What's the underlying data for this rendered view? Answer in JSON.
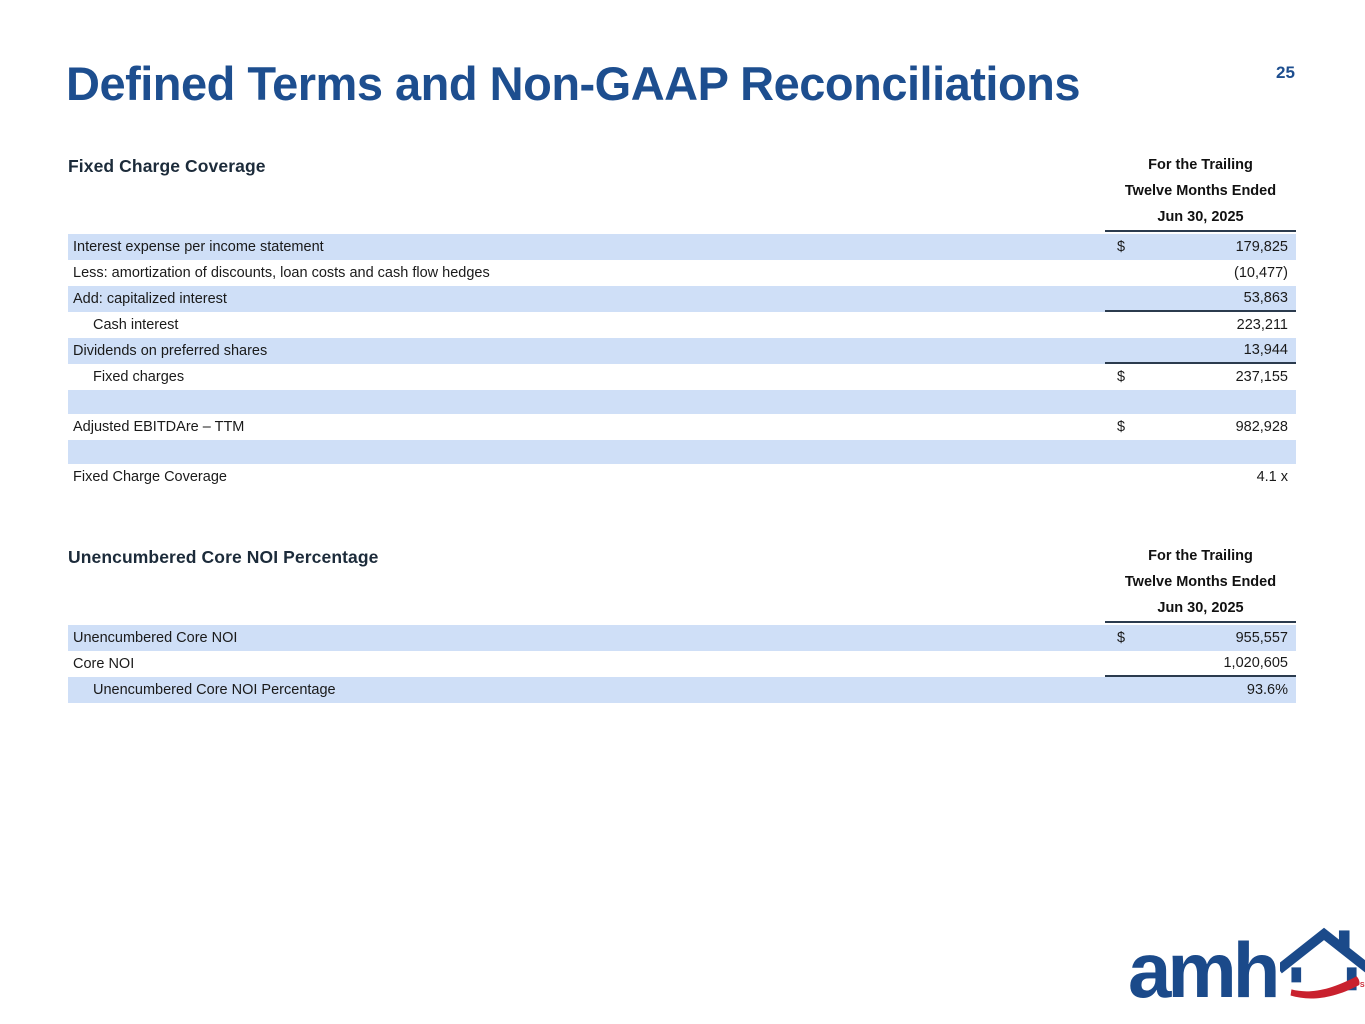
{
  "page": {
    "title": "Defined Terms and Non-GAAP Reconciliations",
    "page_number": "25"
  },
  "colors": {
    "title_blue": "#1d4e8f",
    "heading_navy": "#1c2b3a",
    "row_shade": "#cfdff7",
    "rule_dark": "#2b3b4e",
    "logo_blue": "#1b4a8a",
    "logo_red": "#c9212e"
  },
  "tables": [
    {
      "heading": "Fixed Charge Coverage",
      "period_header": [
        "For the Trailing",
        "Twelve Months Ended",
        "Jun 30, 2025"
      ],
      "rows": [
        {
          "label": "Interest expense per income statement",
          "dollar": "$",
          "value": "179,825",
          "shaded": true
        },
        {
          "label": "Less: amortization of discounts, loan costs and cash flow hedges",
          "dollar": "",
          "value": "(10,477)",
          "shaded": false
        },
        {
          "label": "Add: capitalized interest",
          "dollar": "",
          "value": "53,863",
          "shaded": true,
          "underline": true
        },
        {
          "label": "Cash interest",
          "dollar": "",
          "value": "223,211",
          "shaded": false,
          "indent": true
        },
        {
          "label": "Dividends on preferred shares",
          "dollar": "",
          "value": "13,944",
          "shaded": true,
          "underline": true
        },
        {
          "label": "Fixed charges",
          "dollar": "$",
          "value": "237,155",
          "shaded": false,
          "indent": true
        },
        {
          "spacer": true,
          "shaded": true
        },
        {
          "label": "Adjusted EBITDAre – TTM",
          "dollar": "$",
          "value": "982,928",
          "shaded": false
        },
        {
          "spacer": true,
          "shaded": true
        },
        {
          "label": "Fixed Charge Coverage",
          "dollar": "",
          "value": "4.1 x",
          "shaded": false
        }
      ]
    },
    {
      "heading": "Unencumbered Core NOI Percentage",
      "period_header": [
        "For the Trailing",
        "Twelve Months Ended",
        "Jun 30, 2025"
      ],
      "rows": [
        {
          "label": "Unencumbered Core NOI",
          "dollar": "$",
          "value": "955,557",
          "shaded": true
        },
        {
          "label": "Core NOI",
          "dollar": "",
          "value": "1,020,605",
          "shaded": false,
          "underline": true
        },
        {
          "label": "Unencumbered Core NOI Percentage",
          "dollar": "",
          "value": "93.6%",
          "shaded": true,
          "indent": true
        }
      ]
    }
  ],
  "logo": {
    "text": "amh",
    "trademark": "SM"
  }
}
